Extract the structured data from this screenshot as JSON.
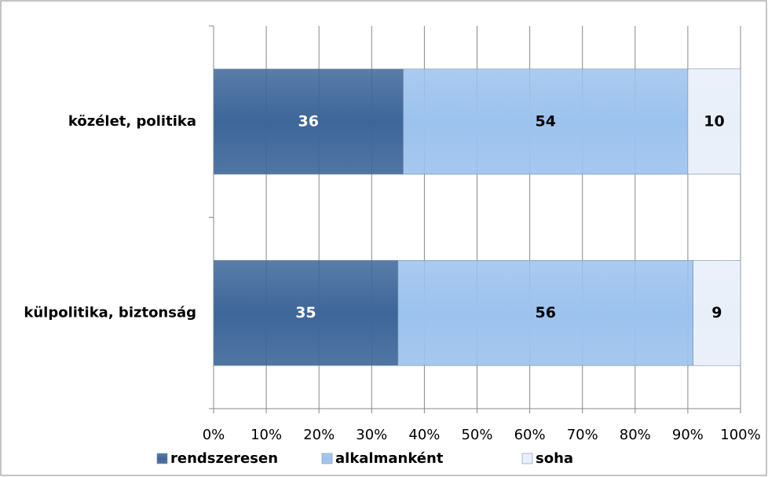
{
  "chart_data": {
    "type": "stacked_barh",
    "categories": [
      "közélet, politika",
      "külpolitika, biztonság"
    ],
    "series": [
      {
        "name": "rendszeresen",
        "color": "#3d6699",
        "values": [
          36,
          35
        ]
      },
      {
        "name": "alkalmanként",
        "color": "#9cc2ee",
        "values": [
          54,
          56
        ]
      },
      {
        "name": "soha",
        "color": "#e8eff9",
        "values": [
          10,
          9
        ]
      }
    ],
    "xlim": [
      0,
      100
    ],
    "xticks": [
      {
        "value": 0,
        "label": "0%"
      },
      {
        "value": 10,
        "label": "10%"
      },
      {
        "value": 20,
        "label": "20%"
      },
      {
        "value": 30,
        "label": "30%"
      },
      {
        "value": 40,
        "label": "40%"
      },
      {
        "value": 50,
        "label": "50%"
      },
      {
        "value": 60,
        "label": "60%"
      },
      {
        "value": 70,
        "label": "70%"
      },
      {
        "value": 80,
        "label": "80%"
      },
      {
        "value": 90,
        "label": "90%"
      },
      {
        "value": 100,
        "label": "100%"
      }
    ],
    "grid": true,
    "legend": "bottom"
  }
}
